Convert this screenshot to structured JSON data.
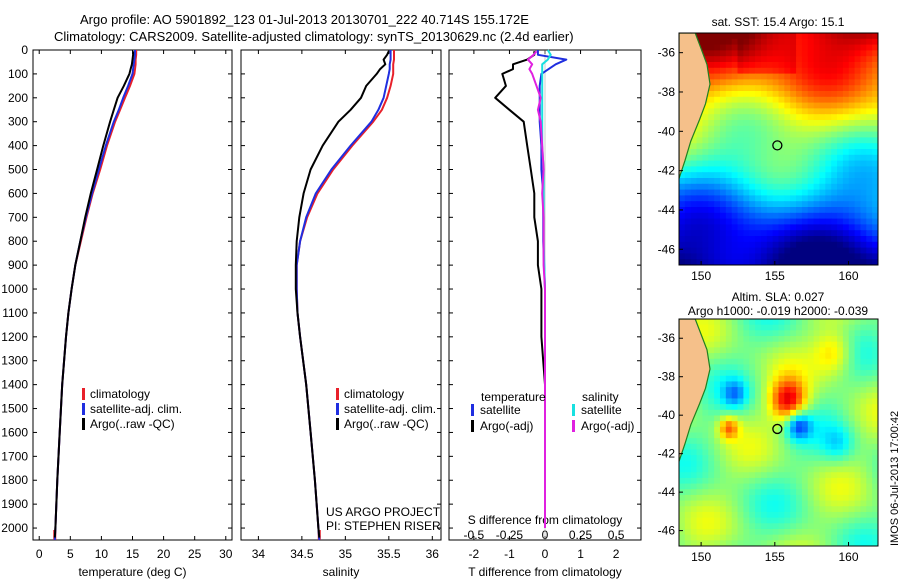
{
  "header": {
    "title_line1": "Argo profile: AO 5901892_123 01-Jul-2013 20130701_222 40.714S 155.172E",
    "title_line2": "Climatology: CARS2009. Satellite-adjusted climatology: synTS_20130629.nc (2.4d earlier)"
  },
  "stamp": "IMOS 06-Jul-2013 17:00:42",
  "colors": {
    "climatology": "#e8202a",
    "satellite": "#1f2ee0",
    "argo": "#000000",
    "salinity_satellite": "#18e0e0",
    "salinity_argo": "#e020e0",
    "land": "#f5c08a",
    "coast": "#208020"
  },
  "chart_data": [
    {
      "type": "line",
      "panel": "temperature",
      "xlabel": "temperature (deg C)",
      "ylabel": "",
      "xlim": [
        -1,
        31
      ],
      "ylim": [
        2050,
        0
      ],
      "y_inverted": true,
      "xticks": [
        "0",
        "5",
        "10",
        "15",
        "20",
        "25",
        "30"
      ],
      "xtick_values": [
        0,
        5,
        10,
        15,
        20,
        25,
        30
      ],
      "yticks": [
        "0",
        "100",
        "200",
        "300",
        "400",
        "500",
        "600",
        "700",
        "800",
        "900",
        "1000",
        "1100",
        "1200",
        "1300",
        "1400",
        "1500",
        "1600",
        "1700",
        "1800",
        "1900",
        "2000"
      ],
      "ytick_values": [
        0,
        100,
        200,
        300,
        400,
        500,
        600,
        700,
        800,
        900,
        1000,
        1100,
        1200,
        1300,
        1400,
        1500,
        1600,
        1700,
        1800,
        1900,
        2000
      ],
      "legend": [
        "climatology",
        "satellite-adj. clim.",
        "Argo(..raw -QC)"
      ],
      "legend_position": "lower-center",
      "series": [
        {
          "name": "climatology",
          "color": "red",
          "depth": [
            0,
            20,
            40,
            60,
            80,
            100,
            150,
            200,
            250,
            300,
            400,
            500,
            600,
            700,
            800,
            900,
            1000,
            1100,
            1200,
            1400,
            1600,
            1800,
            2000,
            2050
          ],
          "values": [
            15.6,
            15.6,
            15.5,
            15.5,
            15.4,
            15.3,
            14.6,
            13.8,
            13.0,
            12.2,
            10.9,
            9.8,
            8.6,
            7.6,
            6.7,
            5.8,
            5.2,
            4.7,
            4.3,
            3.7,
            3.3,
            2.9,
            2.6,
            2.5
          ]
        },
        {
          "name": "satellite-adj. clim.",
          "color": "blue",
          "depth": [
            0,
            20,
            40,
            60,
            80,
            100,
            150,
            200,
            250,
            300,
            400,
            500,
            600,
            700,
            800,
            900,
            1000,
            1100,
            1200,
            1400,
            1600,
            1800,
            2000,
            2050
          ],
          "values": [
            15.4,
            15.4,
            15.3,
            15.2,
            15.1,
            15.0,
            14.3,
            13.5,
            12.8,
            12.0,
            10.7,
            9.6,
            8.5,
            7.5,
            6.6,
            5.8,
            5.2,
            4.7,
            4.3,
            3.7,
            3.3,
            2.9,
            2.6,
            2.5
          ]
        },
        {
          "name": "Argo(..raw -QC)",
          "color": "black",
          "depth": [
            5,
            20,
            40,
            60,
            80,
            100,
            150,
            200,
            250,
            300,
            400,
            500,
            600,
            700,
            800,
            900,
            1000,
            1100,
            1200,
            1400,
            1600,
            1800,
            2000,
            2040
          ],
          "values": [
            15.1,
            15.1,
            15.0,
            14.9,
            14.7,
            14.5,
            13.6,
            12.6,
            12.0,
            11.4,
            10.3,
            9.3,
            8.3,
            7.4,
            6.6,
            5.8,
            5.2,
            4.7,
            4.3,
            3.7,
            3.3,
            2.9,
            2.6,
            2.5
          ]
        }
      ]
    },
    {
      "type": "line",
      "panel": "salinity",
      "xlabel": "salinity",
      "ylabel": "",
      "xlim": [
        33.8,
        36.1
      ],
      "ylim": [
        2050,
        0
      ],
      "y_inverted": true,
      "xticks": [
        "34",
        "34.5",
        "35",
        "35.5",
        "36"
      ],
      "xtick_values": [
        34,
        34.5,
        35,
        35.5,
        36
      ],
      "legend": [
        "climatology",
        "satellite-adj. clim.",
        "Argo(..raw -QC)"
      ],
      "legend_position": "lower-center",
      "annotations": [
        "US ARGO PROJECT",
        "PI: STEPHEN RISER"
      ],
      "series": [
        {
          "name": "climatology",
          "color": "red",
          "depth": [
            0,
            20,
            40,
            60,
            80,
            100,
            150,
            200,
            250,
            300,
            400,
            500,
            600,
            700,
            800,
            900,
            1000,
            1100,
            1200,
            1400,
            1600,
            1800,
            2000,
            2050
          ],
          "values": [
            35.56,
            35.56,
            35.56,
            35.55,
            35.55,
            35.55,
            35.52,
            35.48,
            35.42,
            35.32,
            35.08,
            34.86,
            34.68,
            34.56,
            34.48,
            34.44,
            34.44,
            34.45,
            34.48,
            34.55,
            34.6,
            34.65,
            34.69,
            34.7
          ]
        },
        {
          "name": "satellite-adj. clim.",
          "color": "blue",
          "depth": [
            0,
            20,
            40,
            60,
            80,
            100,
            150,
            200,
            250,
            300,
            400,
            500,
            600,
            700,
            800,
            900,
            1000,
            1100,
            1200,
            1400,
            1600,
            1800,
            2000,
            2050
          ],
          "values": [
            35.52,
            35.52,
            35.52,
            35.51,
            35.51,
            35.5,
            35.47,
            35.44,
            35.38,
            35.3,
            35.06,
            34.84,
            34.66,
            34.55,
            34.48,
            34.44,
            34.44,
            34.45,
            34.48,
            34.55,
            34.6,
            34.65,
            34.69,
            34.7
          ]
        },
        {
          "name": "Argo(..raw -QC)",
          "color": "black",
          "depth": [
            5,
            20,
            40,
            60,
            80,
            100,
            150,
            200,
            250,
            300,
            400,
            500,
            600,
            700,
            800,
            900,
            1000,
            1100,
            1200,
            1400,
            1600,
            1800,
            2000,
            2040
          ],
          "values": [
            35.5,
            35.48,
            35.44,
            35.46,
            35.4,
            35.36,
            35.24,
            35.18,
            35.06,
            34.92,
            34.74,
            34.6,
            34.52,
            34.47,
            34.44,
            34.43,
            34.43,
            34.45,
            34.48,
            34.55,
            34.6,
            34.65,
            34.69,
            34.7
          ]
        }
      ]
    },
    {
      "type": "line",
      "panel": "difference",
      "xlabel": "T difference from climatology",
      "xlabel_top": "S difference from climatology",
      "xlim": [
        -2.7,
        2.7
      ],
      "ylim": [
        2050,
        0
      ],
      "y_inverted": true,
      "xticks": [
        "-2",
        "-1",
        "0",
        "1",
        "2"
      ],
      "xtick_values": [
        -2,
        -1,
        0,
        1,
        2
      ],
      "xticks_top": [
        "-0.5",
        "-0.25",
        "0",
        "0.25",
        "0.5"
      ],
      "legend_groups": [
        "temperature",
        "salinity"
      ],
      "legend": [
        "satellite",
        "Argo(-adj)",
        "satellite",
        "Argo(-adj)"
      ],
      "legend_position": "lower-center",
      "series": [
        {
          "name": "satellite",
          "group": "temperature",
          "color": "blue",
          "depth": [
            0,
            20,
            40,
            60,
            80,
            100,
            150,
            200,
            300,
            400,
            500,
            600,
            800,
            1000,
            1200,
            1400,
            1600,
            1800,
            2000
          ],
          "values": [
            -0.2,
            -0.2,
            0.6,
            0.3,
            0.1,
            -0.1,
            -0.15,
            -0.15,
            -0.15,
            -0.1,
            -0.1,
            -0.05,
            -0.05,
            0,
            0,
            0,
            0,
            0,
            0
          ]
        },
        {
          "name": "Argo(-adj)",
          "group": "temperature",
          "color": "black",
          "depth": [
            5,
            20,
            40,
            60,
            80,
            100,
            150,
            200,
            250,
            300,
            400,
            500,
            600,
            700,
            800,
            900,
            1000,
            1200,
            1400,
            1600,
            1800,
            2000
          ],
          "values": [
            -0.3,
            -0.3,
            -0.5,
            -0.9,
            -0.9,
            -1.2,
            -1.1,
            -1.4,
            -1.0,
            -0.6,
            -0.5,
            -0.4,
            -0.3,
            -0.3,
            -0.2,
            -0.2,
            -0.1,
            -0.1,
            0,
            0,
            0,
            0
          ]
        },
        {
          "name": "satellite",
          "group": "salinity",
          "color": "cyan",
          "depth": [
            0,
            20,
            40,
            60,
            80,
            100,
            150,
            200,
            300,
            400,
            500,
            600,
            800,
            1000,
            1200,
            1400,
            1600,
            1800,
            2000
          ],
          "values": [
            0.02,
            0.04,
            0.02,
            -0.02,
            -0.02,
            -0.02,
            -0.02,
            -0.02,
            -0.02,
            -0.02,
            -0.01,
            -0.01,
            -0.01,
            0,
            0,
            0,
            0,
            0,
            0
          ]
        },
        {
          "name": "Argo(-adj)",
          "group": "salinity",
          "color": "magenta",
          "depth": [
            5,
            20,
            40,
            60,
            80,
            100,
            150,
            200,
            250,
            300,
            400,
            500,
            600,
            700,
            800,
            900,
            1000,
            1200,
            1400,
            1600,
            1800,
            2000
          ],
          "values": [
            -0.06,
            -0.08,
            -0.12,
            -0.09,
            -0.11,
            -0.09,
            -0.06,
            -0.03,
            -0.05,
            -0.03,
            -0.02,
            -0.01,
            -0.02,
            -0.01,
            -0.01,
            -0.01,
            0,
            0,
            0,
            0,
            0,
            0
          ]
        }
      ]
    },
    {
      "type": "heatmap",
      "panel": "sst-map",
      "title": "sat. SST: 15.4  Argo: 15.1",
      "xlim": [
        148.5,
        162
      ],
      "ylim": [
        -46.8,
        -35
      ],
      "xticks": [
        "150",
        "155",
        "160"
      ],
      "xtick_values": [
        150,
        155,
        160
      ],
      "yticks": [
        "-36",
        "-38",
        "-40",
        "-42",
        "-44",
        "-46"
      ],
      "ytick_values": [
        -36,
        -38,
        -40,
        -42,
        -44,
        -46
      ],
      "marker": {
        "lon": 155.172,
        "lat": -40.714
      },
      "colormap": "jet"
    },
    {
      "type": "heatmap",
      "panel": "sla-map",
      "title": "Altim. SLA: 0.027",
      "subtitle": "Argo h1000: -0.019 h2000: -0.039",
      "xlim": [
        148.5,
        162
      ],
      "ylim": [
        -46.8,
        -35
      ],
      "xticks": [
        "150",
        "155",
        "160"
      ],
      "xtick_values": [
        150,
        155,
        160
      ],
      "yticks": [
        "-36",
        "-38",
        "-40",
        "-42",
        "-44",
        "-46"
      ],
      "ytick_values": [
        -36,
        -38,
        -40,
        -42,
        -44,
        -46
      ],
      "marker": {
        "lon": 155.172,
        "lat": -40.714
      },
      "colormap": "jet"
    }
  ]
}
